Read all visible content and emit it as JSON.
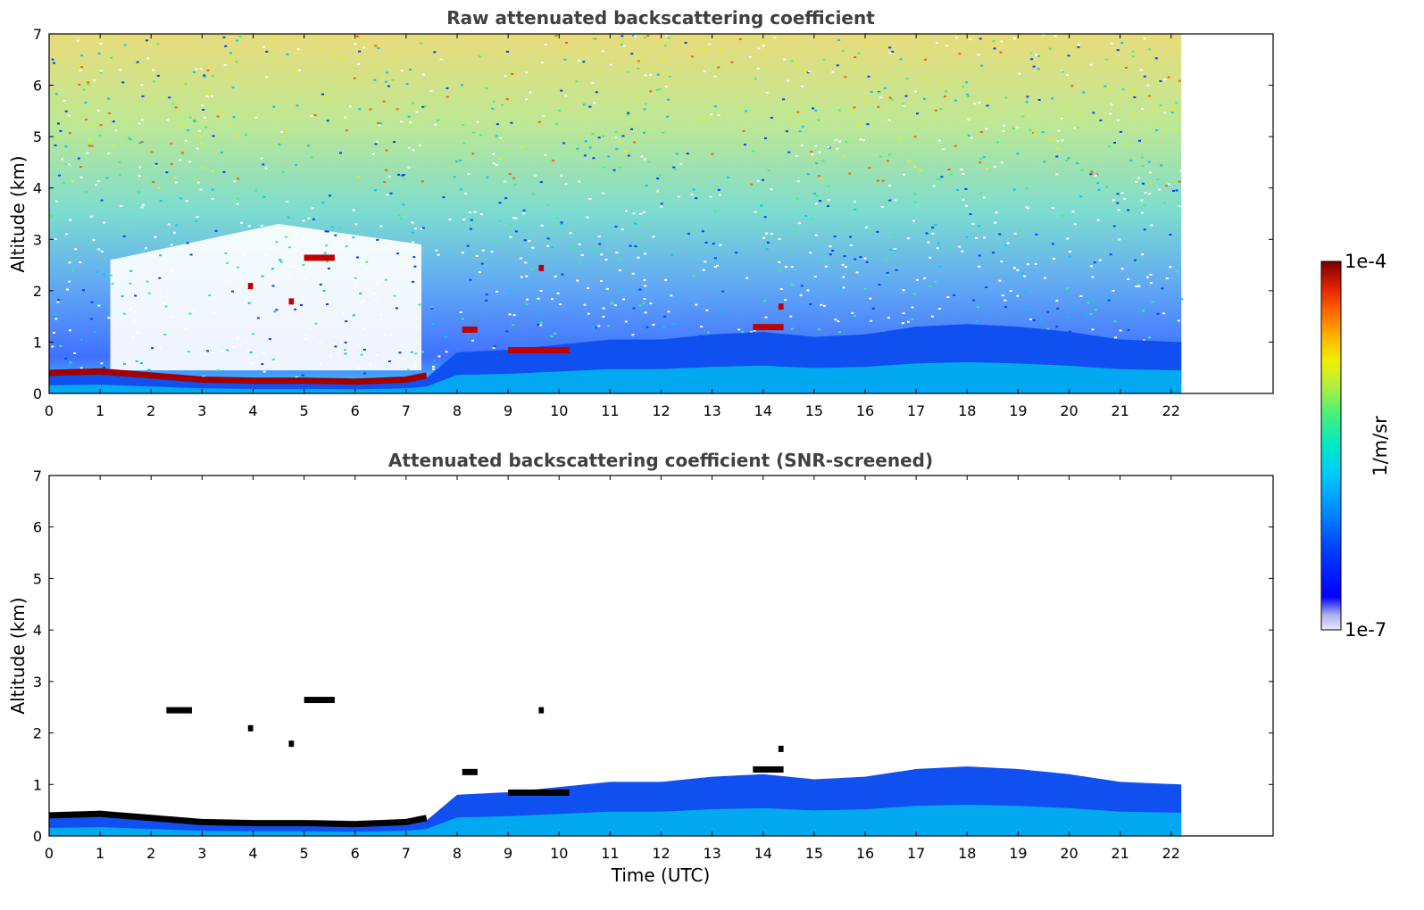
{
  "chart_data": [
    {
      "type": "heatmap",
      "title": "Raw attenuated backscattering coefficient",
      "xlabel": "",
      "ylabel": "Altitude (km)",
      "x_ticks": [
        "0",
        "1",
        "2",
        "3",
        "4",
        "5",
        "6",
        "7",
        "8",
        "9",
        "10",
        "11",
        "12",
        "13",
        "14",
        "15",
        "16",
        "17",
        "18",
        "19",
        "20",
        "21",
        "22"
      ],
      "y_ticks": [
        "0",
        "1",
        "2",
        "3",
        "4",
        "5",
        "6",
        "7"
      ],
      "xlim": [
        0,
        24
      ],
      "ylim": [
        0,
        7
      ],
      "data_extent_x": [
        0,
        22.2
      ],
      "features": {
        "boundary_layer_top_km": [
          [
            0,
            0.35
          ],
          [
            1,
            0.38
          ],
          [
            2,
            0.3
          ],
          [
            3,
            0.22
          ],
          [
            4,
            0.2
          ],
          [
            5,
            0.2
          ],
          [
            6,
            0.18
          ],
          [
            7,
            0.22
          ],
          [
            7.4,
            0.3
          ],
          [
            8,
            0.8
          ],
          [
            9,
            0.85
          ],
          [
            10,
            0.95
          ],
          [
            11,
            1.05
          ],
          [
            12,
            1.05
          ],
          [
            13,
            1.15
          ],
          [
            14,
            1.2
          ],
          [
            15,
            1.1
          ],
          [
            16,
            1.15
          ],
          [
            17,
            1.3
          ],
          [
            18,
            1.35
          ],
          [
            19,
            1.3
          ],
          [
            20,
            1.2
          ],
          [
            21,
            1.05
          ],
          [
            22.2,
            1.0
          ]
        ],
        "cloud_patches": [
          {
            "x": [
              5.0,
              5.6
            ],
            "alt": 2.65
          },
          {
            "x": [
              3.9,
              4.0
            ],
            "alt": 2.1
          },
          {
            "x": [
              4.7,
              4.8
            ],
            "alt": 1.8
          },
          {
            "x": [
              9.6,
              9.7
            ],
            "alt": 2.45
          },
          {
            "x": [
              8.1,
              8.4
            ],
            "alt": 1.25
          },
          {
            "x": [
              9.0,
              10.2
            ],
            "alt": 0.85
          },
          {
            "x": [
              13.8,
              14.4
            ],
            "alt": 1.3
          },
          {
            "x": [
              14.3,
              14.4
            ],
            "alt": 1.7
          }
        ]
      },
      "colorbar": {
        "label": "1/m/sr",
        "min": "1e-7",
        "max": "1e-4",
        "scale": "log"
      }
    },
    {
      "type": "heatmap",
      "title": "Attenuated backscattering coefficient (SNR-screened)",
      "xlabel": "Time (UTC)",
      "ylabel": "Altitude (km)",
      "x_ticks": [
        "0",
        "1",
        "2",
        "3",
        "4",
        "5",
        "6",
        "7",
        "8",
        "9",
        "10",
        "11",
        "12",
        "13",
        "14",
        "15",
        "16",
        "17",
        "18",
        "19",
        "20",
        "21",
        "22"
      ],
      "y_ticks": [
        "0",
        "1",
        "2",
        "3",
        "4",
        "5",
        "6",
        "7"
      ],
      "xlim": [
        0,
        24
      ],
      "ylim": [
        0,
        7
      ],
      "data_extent_x": [
        0,
        22.2
      ],
      "features": {
        "boundary_layer_top_km": [
          [
            0,
            0.35
          ],
          [
            1,
            0.38
          ],
          [
            2,
            0.3
          ],
          [
            3,
            0.22
          ],
          [
            4,
            0.2
          ],
          [
            5,
            0.2
          ],
          [
            6,
            0.18
          ],
          [
            7,
            0.22
          ],
          [
            7.4,
            0.3
          ],
          [
            8,
            0.8
          ],
          [
            9,
            0.85
          ],
          [
            10,
            0.95
          ],
          [
            11,
            1.05
          ],
          [
            12,
            1.05
          ],
          [
            13,
            1.15
          ],
          [
            14,
            1.2
          ],
          [
            15,
            1.1
          ],
          [
            16,
            1.15
          ],
          [
            17,
            1.3
          ],
          [
            18,
            1.35
          ],
          [
            19,
            1.3
          ],
          [
            20,
            1.2
          ],
          [
            21,
            1.05
          ],
          [
            22.2,
            1.0
          ]
        ],
        "cloud_patches": [
          {
            "x": [
              5.0,
              5.6
            ],
            "alt": 2.65
          },
          {
            "x": [
              2.3,
              2.8
            ],
            "alt": 2.45
          },
          {
            "x": [
              3.9,
              4.0
            ],
            "alt": 2.1
          },
          {
            "x": [
              4.7,
              4.8
            ],
            "alt": 1.8
          },
          {
            "x": [
              9.6,
              9.7
            ],
            "alt": 2.45
          },
          {
            "x": [
              8.1,
              8.4
            ],
            "alt": 1.25
          },
          {
            "x": [
              9.0,
              10.2
            ],
            "alt": 0.85
          },
          {
            "x": [
              13.8,
              14.4
            ],
            "alt": 1.3
          },
          {
            "x": [
              14.3,
              14.4
            ],
            "alt": 1.7
          }
        ]
      },
      "colorbar": {
        "label": "1/m/sr",
        "min": "1e-7",
        "max": "1e-4",
        "scale": "log"
      }
    }
  ],
  "colormap": [
    "#e8e8f8",
    "#a8a8f0",
    "#0000ff",
    "#0040ff",
    "#0090ff",
    "#00c8ff",
    "#00e8c8",
    "#40f080",
    "#b0f040",
    "#f0f000",
    "#ffb000",
    "#ff6000",
    "#e02000",
    "#a00000",
    "#780000"
  ]
}
